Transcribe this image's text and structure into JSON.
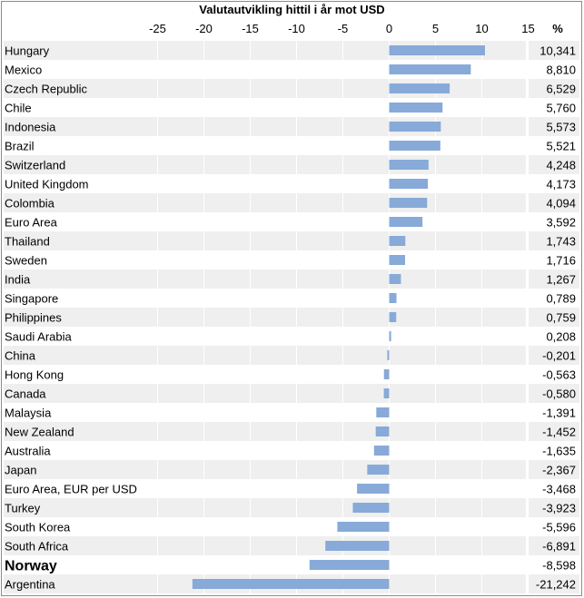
{
  "chart_data": {
    "type": "bar",
    "orientation": "horizontal",
    "title": "Valutautvikling hittil i år mot USD",
    "value_header": "%",
    "xlim": [
      -25,
      15
    ],
    "ticks": [
      -25,
      -20,
      -15,
      -10,
      -5,
      0,
      5,
      10,
      15
    ],
    "tick_labels": [
      "-25",
      "-20",
      "-15",
      "-10",
      "-5",
      "0",
      "5",
      "10",
      "15"
    ],
    "grid": true,
    "bar_color": "#87aad8",
    "highlight_category": "Norway",
    "categories": [
      "Hungary",
      "Mexico",
      "Czech Republic",
      "Chile",
      "Indonesia",
      "Brazil",
      "Switzerland",
      "United Kingdom",
      "Colombia",
      "Euro Area",
      "Thailand",
      "Sweden",
      "India",
      "Singapore",
      "Philippines",
      "Saudi Arabia",
      "China",
      "Hong Kong",
      "Canada",
      "Malaysia",
      "New Zealand",
      "Australia",
      "Japan",
      "Euro Area, EUR per USD",
      "Turkey",
      "South Korea",
      "South Africa",
      "Norway",
      "Argentina"
    ],
    "values": [
      10.341,
      8.81,
      6.529,
      5.76,
      5.573,
      5.521,
      4.248,
      4.173,
      4.094,
      3.592,
      1.743,
      1.716,
      1.267,
      0.789,
      0.759,
      0.208,
      -0.201,
      -0.563,
      -0.58,
      -1.391,
      -1.452,
      -1.635,
      -2.367,
      -3.468,
      -3.923,
      -5.596,
      -6.891,
      -8.598,
      -21.242
    ],
    "value_labels": [
      "10,341",
      "8,810",
      "6,529",
      "5,760",
      "5,573",
      "5,521",
      "4,248",
      "4,173",
      "4,094",
      "3,592",
      "1,743",
      "1,716",
      "1,267",
      "0,789",
      "0,759",
      "0,208",
      "-0,201",
      "-0,563",
      "-0,580",
      "-1,391",
      "-1,452",
      "-1,635",
      "-2,367",
      "-3,468",
      "-3,923",
      "-5,596",
      "-6,891",
      "-8,598",
      "-21,242"
    ]
  }
}
